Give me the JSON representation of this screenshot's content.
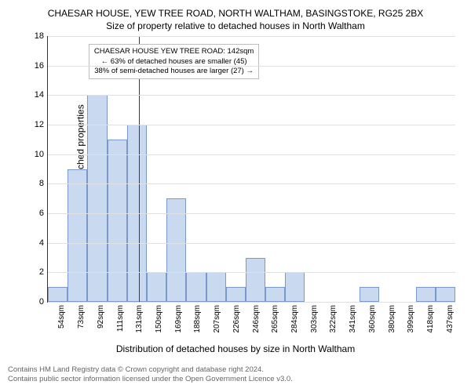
{
  "chart": {
    "type": "histogram",
    "title_main": "CHAESAR HOUSE, YEW TREE ROAD, NORTH WALTHAM, BASINGSTOKE, RG25 2BX",
    "title_sub": "Size of property relative to detached houses in North Waltham",
    "title_fontsize": 12,
    "x_axis_label": "Distribution of detached houses by size in North Waltham",
    "y_axis_label": "Number of detached properties",
    "axis_label_fontsize": 12,
    "background_color": "#ffffff",
    "bar_fill": "#c9d9ef",
    "bar_border": "#7a98c9",
    "grid_color": "#e0e0e0",
    "reference_line_color": "#c00000",
    "reference_line_bin_index": 4,
    "y_max": 18,
    "y_ticks": [
      0,
      2,
      4,
      6,
      8,
      10,
      12,
      14,
      16,
      18
    ],
    "x_labels": [
      "54sqm",
      "73sqm",
      "92sqm",
      "111sqm",
      "131sqm",
      "150sqm",
      "169sqm",
      "188sqm",
      "207sqm",
      "226sqm",
      "246sqm",
      "265sqm",
      "284sqm",
      "303sqm",
      "322sqm",
      "341sqm",
      "360sqm",
      "380sqm",
      "399sqm",
      "418sqm",
      "437sqm"
    ],
    "values": [
      1,
      9,
      14,
      11,
      12,
      2,
      7,
      2,
      2,
      1,
      3,
      1,
      2,
      0,
      0,
      0,
      1,
      0,
      0,
      1,
      1
    ],
    "annotation": {
      "line1": "CHAESAR HOUSE YEW TREE ROAD: 142sqm",
      "line2": "← 63% of detached houses are smaller (45)",
      "line3": "38% of semi-detached houses are larger (27) →",
      "border_color": "#bdbdbd",
      "bg_color": "#ffffff",
      "fontsize": 9.5
    }
  },
  "footer": {
    "line1": "Contains HM Land Registry data © Crown copyright and database right 2024.",
    "line2": "Contains public sector information licensed under the Open Government Licence v3.0.",
    "color": "#666666",
    "fontsize": 9.5
  }
}
